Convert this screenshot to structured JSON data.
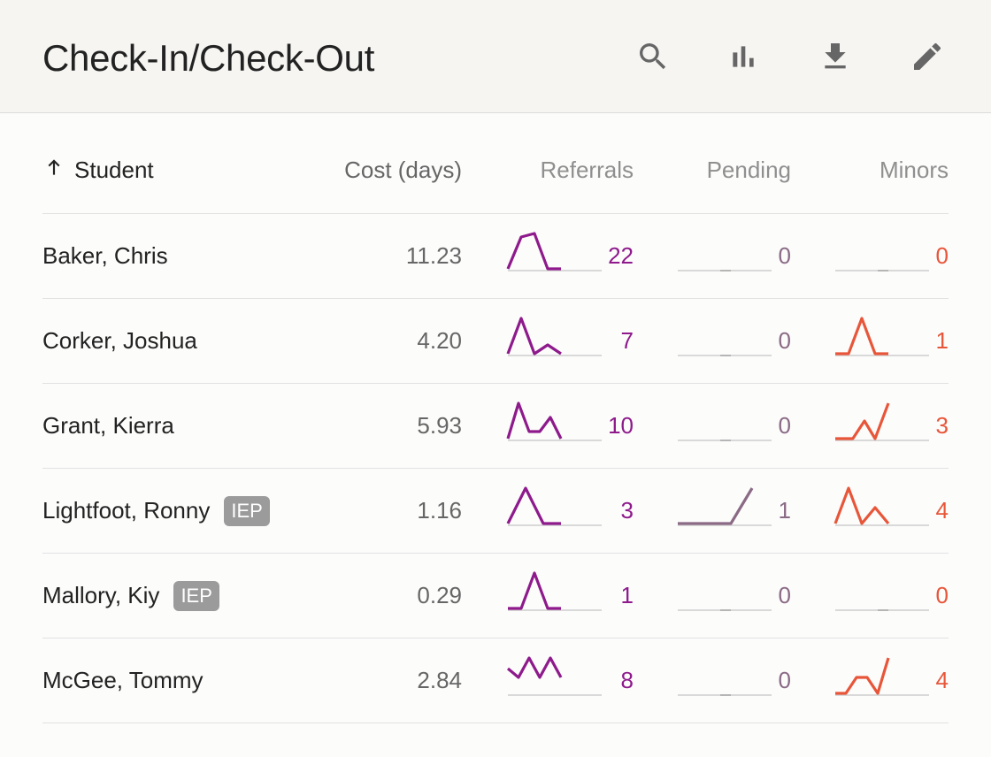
{
  "header": {
    "title": "Check-In/Check-Out",
    "buttons": [
      "search-icon",
      "bar-chart-icon",
      "download-icon",
      "edit-icon"
    ]
  },
  "colors": {
    "referrals": "#8e1a8c",
    "pending": "#8a6a85",
    "minors": "#e8563a",
    "baseline": "#d9d9d9"
  },
  "columns": {
    "student": "Student",
    "cost": "Cost (days)",
    "referrals": "Referrals",
    "pending": "Pending",
    "minors": "Minors",
    "sort_icon": "arrow-up-icon"
  },
  "rows": [
    {
      "name": "Baker, Chris",
      "iep": null,
      "cost": "11.23",
      "referrals": {
        "value": "22",
        "trend": [
          0,
          0.9,
          1,
          0,
          0
        ]
      },
      "pending": {
        "value": "0",
        "trend": [
          0,
          0,
          0,
          0,
          0
        ]
      },
      "minors": {
        "value": "0",
        "trend": [
          0,
          0,
          0,
          0,
          0
        ]
      }
    },
    {
      "name": "Corker, Joshua",
      "iep": null,
      "cost": "4.20",
      "referrals": {
        "value": "7",
        "trend": [
          0,
          1,
          0,
          0.25,
          0
        ]
      },
      "pending": {
        "value": "0",
        "trend": [
          0,
          0,
          0,
          0,
          0
        ]
      },
      "minors": {
        "value": "1",
        "trend": [
          0,
          0,
          1,
          0,
          0
        ]
      }
    },
    {
      "name": "Grant, Kierra",
      "iep": null,
      "cost": "5.93",
      "referrals": {
        "value": "10",
        "trend": [
          0,
          1,
          0.2,
          0.2,
          0.6,
          0
        ]
      },
      "pending": {
        "value": "0",
        "trend": [
          0,
          0,
          0,
          0,
          0
        ]
      },
      "minors": {
        "value": "3",
        "trend": [
          0,
          0,
          0.5,
          0,
          1
        ]
      },
      "minors_x": [
        0,
        0.33,
        0.55,
        0.75,
        1
      ]
    },
    {
      "name": "Lightfoot, Ronny",
      "iep": "IEP",
      "cost": "1.16",
      "referrals": {
        "value": "3",
        "trend": [
          0,
          1,
          0,
          0
        ]
      },
      "pending": {
        "value": "1",
        "trend": [
          0,
          0,
          0,
          1
        ]
      },
      "minors": {
        "value": "4",
        "trend": [
          0,
          1,
          0,
          0.45,
          0
        ]
      }
    },
    {
      "name": "Mallory, Kiy",
      "iep": "IEP",
      "cost": "0.29",
      "referrals": {
        "value": "1",
        "trend": [
          0,
          0,
          1,
          0,
          0
        ]
      },
      "pending": {
        "value": "0",
        "trend": [
          0,
          0,
          0,
          0,
          0
        ]
      },
      "minors": {
        "value": "0",
        "trend": [
          0,
          0,
          0,
          0,
          0
        ]
      }
    },
    {
      "name": "McGee, Tommy",
      "iep": null,
      "cost": "2.84",
      "referrals": {
        "value": "8",
        "trend": [
          0.7,
          0.45,
          1,
          0.45,
          1,
          0.45
        ]
      },
      "pending": {
        "value": "0",
        "trend": [
          0,
          0,
          0,
          0,
          0
        ]
      },
      "minors": {
        "value": "4",
        "trend": [
          0,
          0,
          0.45,
          0.45,
          0,
          1
        ]
      }
    }
  ]
}
